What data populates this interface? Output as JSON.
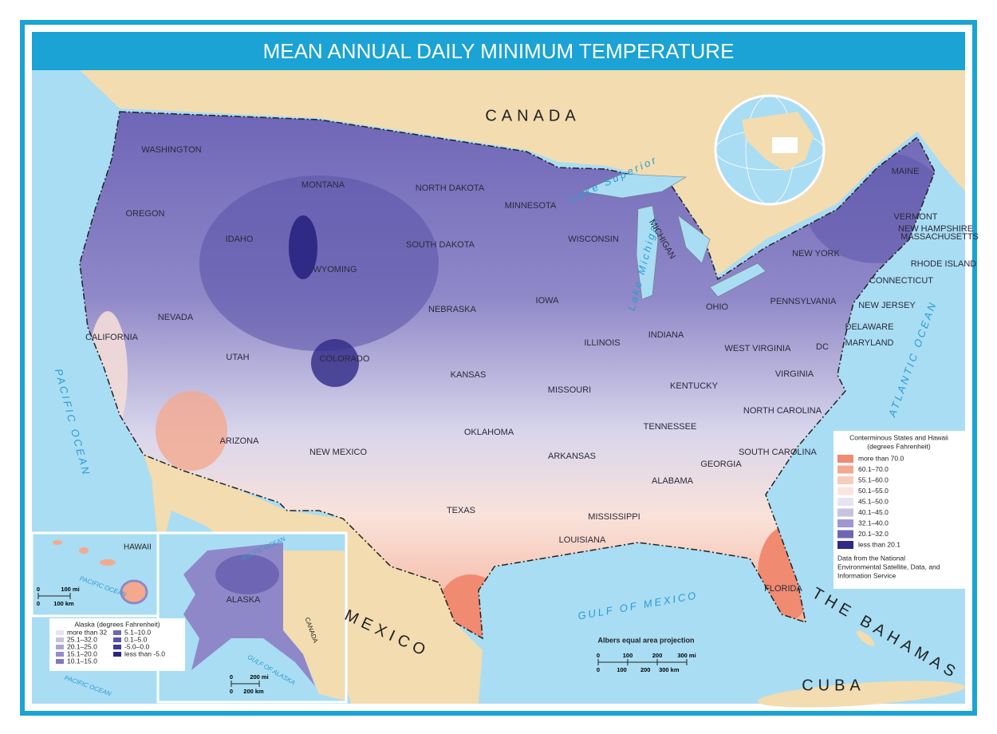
{
  "title": "MEAN ANNUAL DAILY MINIMUM TEMPERATURE",
  "countries": [
    "CANADA",
    "MEXICO",
    "CUBA",
    "THE BAHAMAS"
  ],
  "water": [
    "PACIFIC OCEAN",
    "ATLANTIC OCEAN",
    "GULF OF MEXICO",
    "Lake Superior",
    "Lake Michigan"
  ],
  "states": [
    "WASHINGTON",
    "OREGON",
    "CALIFORNIA",
    "NEVADA",
    "IDAHO",
    "MONTANA",
    "WYOMING",
    "UTAH",
    "ARIZONA",
    "COLORADO",
    "NEW MEXICO",
    "NORTH DAKOTA",
    "SOUTH DAKOTA",
    "NEBRASKA",
    "KANSAS",
    "OKLAHOMA",
    "TEXAS",
    "MINNESOTA",
    "IOWA",
    "MISSOURI",
    "ARKANSAS",
    "LOUISIANA",
    "WISCONSIN",
    "ILLINOIS",
    "MICHIGAN",
    "INDIANA",
    "OHIO",
    "KENTUCKY",
    "TENNESSEE",
    "MISSISSIPPI",
    "ALABAMA",
    "GEORGIA",
    "FLORIDA",
    "SOUTH CAROLINA",
    "NORTH CAROLINA",
    "VIRGINIA",
    "WEST VIRGINIA",
    "PENNSYLVANIA",
    "NEW YORK",
    "MAINE",
    "VERMONT",
    "NEW HAMPSHIRE",
    "MASSACHUSETTS",
    "RHODE ISLAND",
    "CONNECTICUT",
    "NEW JERSEY",
    "DELAWARE",
    "MARYLAND",
    "DC"
  ],
  "insets": {
    "hawaii": {
      "name": "HAWAII",
      "ocean": "PACIFIC OCEAN",
      "scale": [
        "0",
        "100 mi",
        "0",
        "100 km"
      ]
    },
    "alaska": {
      "name": "ALASKA",
      "labels": [
        "ARCTIC OCEAN",
        "GULF OF ALASKA",
        "PACIFIC OCEAN",
        "CANADA"
      ],
      "scale": [
        "0",
        "200 mi",
        "0",
        "200 km"
      ]
    }
  },
  "legend": {
    "title": "Conterminous States and Hawaii",
    "subtitle": "(degrees Fahrenheit)",
    "items": [
      {
        "label": "more than 70.0",
        "color": "#f08a70"
      },
      {
        "label": "60.1–70.0",
        "color": "#f4a98f"
      },
      {
        "label": "55.1–60.0",
        "color": "#f8ccbd"
      },
      {
        "label": "50.1–55.0",
        "color": "#fbe6df"
      },
      {
        "label": "45.1–50.0",
        "color": "#e6e4f2"
      },
      {
        "label": "40.1–45.0",
        "color": "#c6c2e2"
      },
      {
        "label": "32.1–40.0",
        "color": "#9e98cf"
      },
      {
        "label": "20.1–32.0",
        "color": "#6e66b5"
      },
      {
        "label": "less than 20.1",
        "color": "#2f2a86"
      }
    ],
    "source": [
      "Data from the National",
      "Environmental Satellite, Data, and",
      "Information Service"
    ]
  },
  "alaska_legend": {
    "title": "Alaska (degrees Fahrenheit)",
    "items": [
      {
        "label": "more than 32",
        "color": "#e6e4f2"
      },
      {
        "label": "25.1–32.0",
        "color": "#c6c2e2"
      },
      {
        "label": "20.1–25.0",
        "color": "#aaa5d6"
      },
      {
        "label": "15.1–20.0",
        "color": "#938dcb"
      },
      {
        "label": "10.1–15.0",
        "color": "#7f78c0"
      },
      {
        "label": "5.1–10.0",
        "color": "#6e66b5"
      },
      {
        "label": "0.1–5.0",
        "color": "#5a52a8"
      },
      {
        "label": "-5.0–0.0",
        "color": "#403a97"
      },
      {
        "label": "less than -5.0",
        "color": "#2a2580"
      }
    ]
  },
  "projection": "Albers equal area projection",
  "scale": {
    "miles": [
      "0",
      "100",
      "200",
      "300 mi"
    ],
    "km": [
      "0",
      "100",
      "200",
      "300 km"
    ]
  }
}
